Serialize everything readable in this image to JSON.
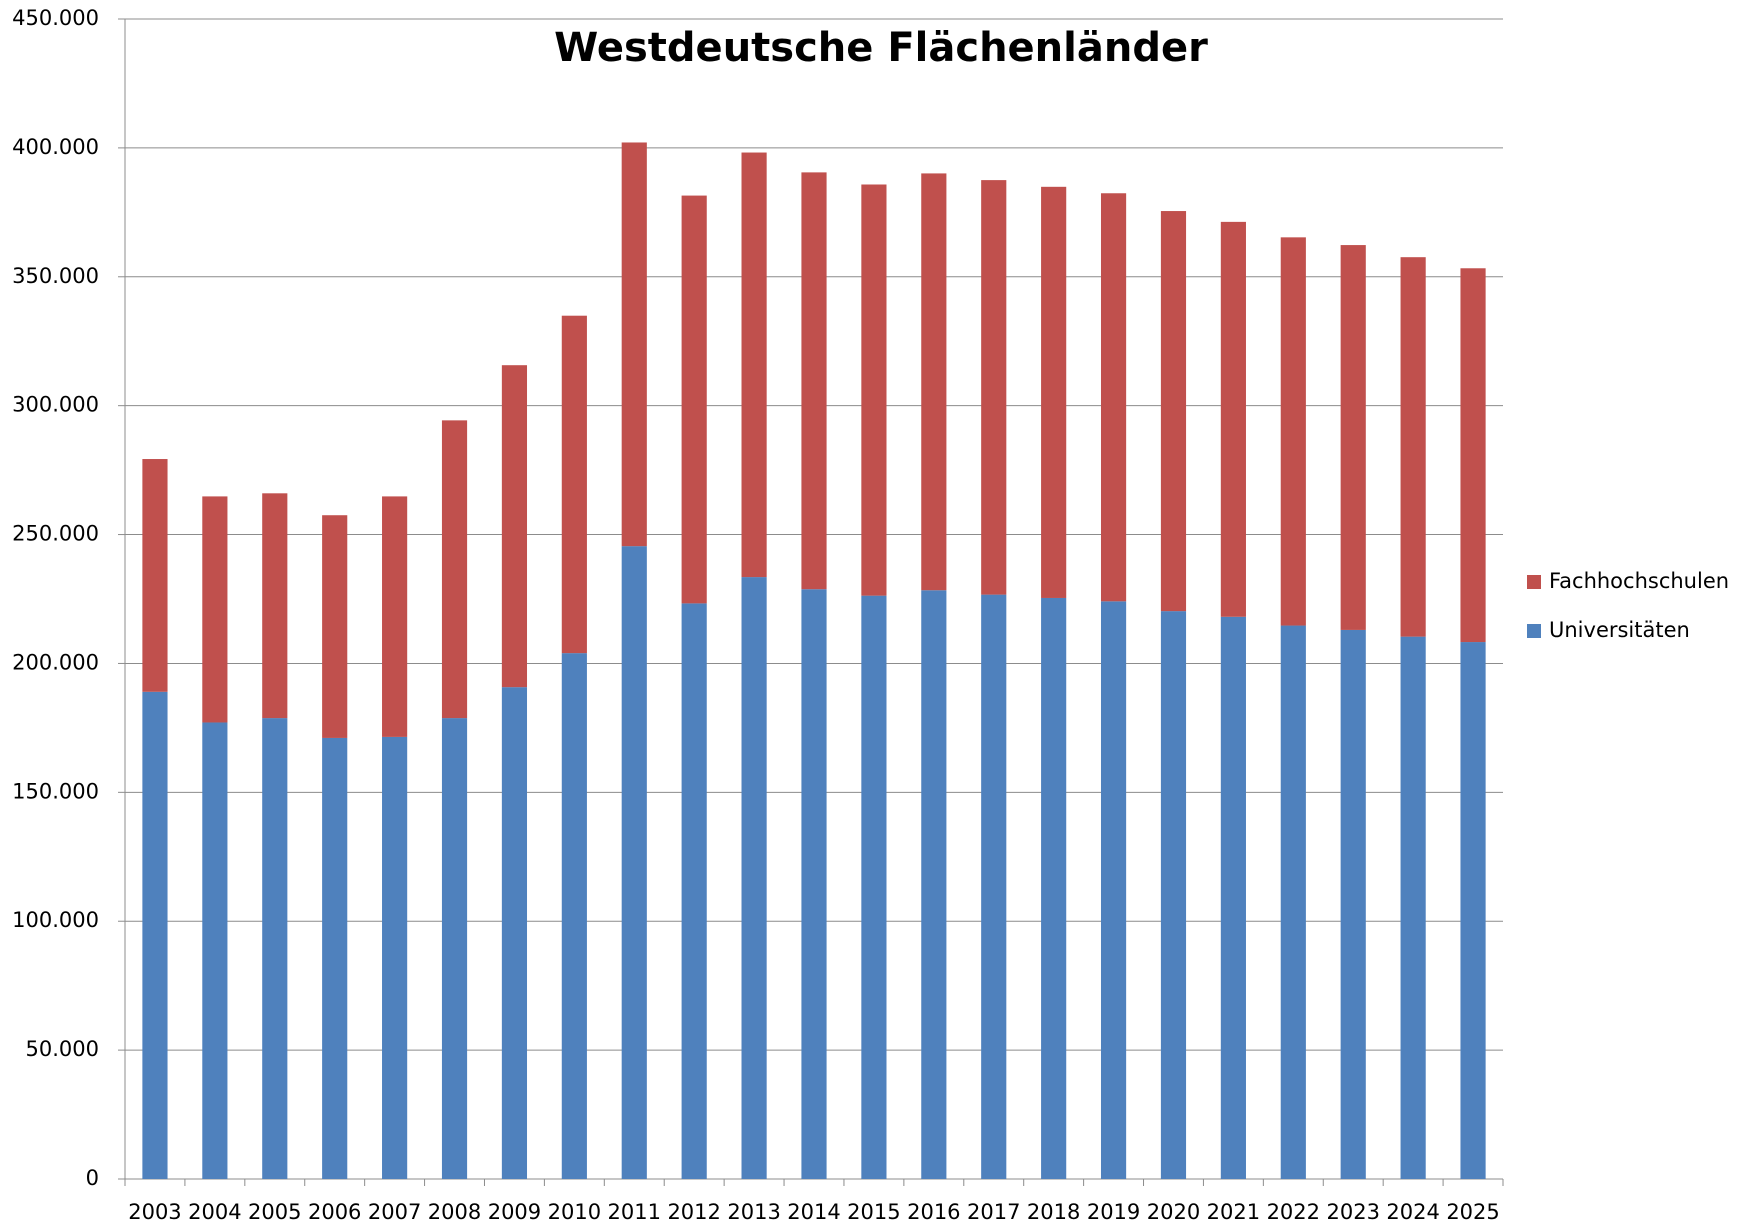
{
  "chart_data": {
    "type": "stacked_bar",
    "title": "Westdeutsche Flächenländer",
    "categories": [
      "2003",
      "2004",
      "2005",
      "2006",
      "2007",
      "2008",
      "2009",
      "2010",
      "2011",
      "2012",
      "2013",
      "2014",
      "2015",
      "2016",
      "2017",
      "2018",
      "2019",
      "2020",
      "2021",
      "2022",
      "2023",
      "2024",
      "2025"
    ],
    "series": [
      {
        "name": "Universitäten",
        "color": "#4f81bd",
        "values": [
          189000,
          177100,
          178800,
          171100,
          171500,
          178800,
          190800,
          204000,
          245500,
          223300,
          233500,
          228800,
          226300,
          228400,
          226700,
          225400,
          224100,
          220300,
          218100,
          214700,
          213000,
          210400,
          208300
        ]
      },
      {
        "name": "Fachhochschulen",
        "color": "#c0504d",
        "values": [
          90300,
          87700,
          87200,
          86400,
          93300,
          115500,
          124900,
          130900,
          156600,
          158200,
          164700,
          161700,
          159500,
          161700,
          160800,
          159500,
          158300,
          155200,
          153200,
          150600,
          149300,
          147200,
          145000
        ]
      }
    ],
    "ylim": [
      0,
      450000
    ],
    "yticks": [
      0,
      {
        "value": 50000,
        "label": "50.000"
      },
      {
        "value": 100000,
        "label": "100.000"
      },
      {
        "value": 150000,
        "label": "150.000"
      },
      {
        "value": 200000,
        "label": "200.000"
      },
      {
        "value": 250000,
        "label": "250.000"
      },
      {
        "value": 300000,
        "label": "300.000"
      },
      {
        "value": 350000,
        "label": "350.000"
      },
      {
        "value": 400000,
        "label": "400.000"
      },
      {
        "value": 450000,
        "label": "450.000"
      }
    ],
    "grid": true,
    "legend": "right"
  }
}
